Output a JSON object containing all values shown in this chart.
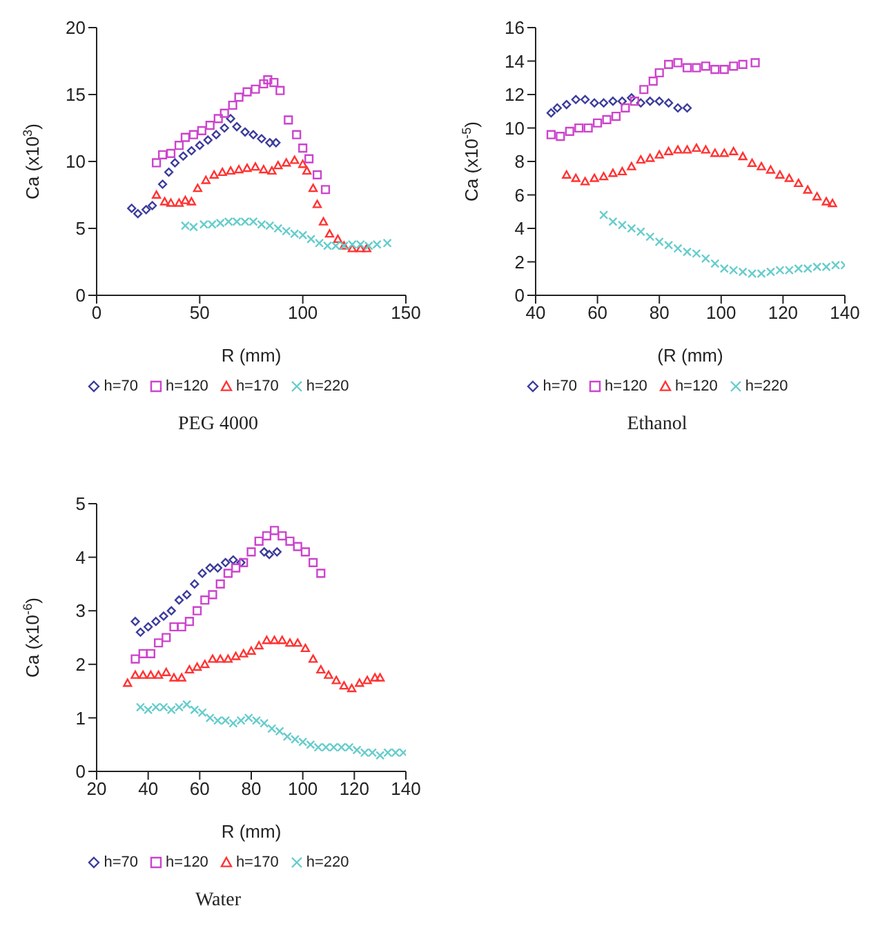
{
  "chart_data": [
    {
      "type": "scatter",
      "title": "PEG 4000",
      "xlabel": "R (mm)",
      "ylabel": "Ca (x10$^{3}$)",
      "xlim": [
        0,
        150
      ],
      "xticks": [
        0,
        50,
        100,
        150
      ],
      "ylim": [
        0,
        20
      ],
      "yticks": [
        0,
        5,
        10,
        15,
        20
      ],
      "grid": false,
      "legend": "bottom",
      "series": [
        {
          "name": "h=70",
          "color": "#3c3c9c",
          "marker": "diamond",
          "x": [
            17,
            20,
            24,
            27,
            32,
            35,
            38,
            42,
            46,
            50,
            54,
            58,
            62,
            65,
            68,
            72,
            76,
            80,
            84,
            87
          ],
          "values": [
            6.5,
            6.1,
            6.4,
            6.7,
            8.3,
            9.2,
            9.9,
            10.4,
            10.8,
            11.2,
            11.6,
            12.0,
            12.5,
            13.2,
            12.6,
            12.2,
            12.0,
            11.7,
            11.4,
            11.4
          ]
        },
        {
          "name": "h=120",
          "color": "#cc44cc",
          "marker": "square",
          "x": [
            29,
            32,
            36,
            40,
            43,
            47,
            51,
            55,
            59,
            62,
            66,
            69,
            73,
            77,
            81,
            83,
            86,
            89,
            93,
            97,
            100,
            103,
            107,
            111
          ],
          "values": [
            9.9,
            10.5,
            10.6,
            11.2,
            11.8,
            12.0,
            12.3,
            12.7,
            13.2,
            13.6,
            14.2,
            14.8,
            15.2,
            15.4,
            15.8,
            16.1,
            15.9,
            15.3,
            13.1,
            12.0,
            11.0,
            10.2,
            9.0,
            7.9
          ]
        },
        {
          "name": "h=170",
          "color": "#ff3333",
          "marker": "triangle",
          "x": [
            29,
            33,
            36,
            40,
            43,
            46,
            49,
            53,
            57,
            61,
            65,
            69,
            73,
            77,
            81,
            85,
            88,
            92,
            96,
            100,
            102,
            105,
            107,
            110,
            113,
            117,
            120,
            124,
            128,
            131
          ],
          "values": [
            7.5,
            7.0,
            6.9,
            6.9,
            7.1,
            7.0,
            8.0,
            8.6,
            9.0,
            9.2,
            9.3,
            9.4,
            9.5,
            9.6,
            9.4,
            9.3,
            9.7,
            9.9,
            10.1,
            9.8,
            9.3,
            8.0,
            6.8,
            5.5,
            4.6,
            4.2,
            3.7,
            3.5,
            3.5,
            3.5
          ]
        },
        {
          "name": "h=220",
          "color": "#66cccc",
          "marker": "cross",
          "x": [
            43,
            47,
            52,
            56,
            60,
            64,
            68,
            72,
            76,
            80,
            84,
            88,
            92,
            96,
            100,
            104,
            108,
            112,
            116,
            120,
            124,
            128,
            132,
            136,
            141
          ],
          "values": [
            5.2,
            5.1,
            5.3,
            5.3,
            5.4,
            5.5,
            5.5,
            5.5,
            5.5,
            5.3,
            5.2,
            5.0,
            4.8,
            4.6,
            4.5,
            4.2,
            3.9,
            3.7,
            3.7,
            3.7,
            3.8,
            3.8,
            3.7,
            3.8,
            3.9
          ]
        }
      ]
    },
    {
      "type": "scatter",
      "title": "Ethanol",
      "xlabel": "(R (mm)",
      "ylabel": "Ca (x10$^{-5}$)",
      "xlim": [
        40,
        140
      ],
      "xticks": [
        40,
        60,
        80,
        100,
        120,
        140
      ],
      "ylim": [
        0,
        16
      ],
      "yticks": [
        0,
        2,
        4,
        6,
        8,
        10,
        12,
        14,
        16
      ],
      "grid": false,
      "legend": "bottom",
      "series": [
        {
          "name": "h=70",
          "color": "#3c3c9c",
          "marker": "diamond",
          "x": [
            45,
            47,
            50,
            53,
            56,
            59,
            62,
            65,
            68,
            71,
            74,
            77,
            80,
            83,
            86,
            89
          ],
          "values": [
            10.9,
            11.2,
            11.4,
            11.7,
            11.7,
            11.5,
            11.5,
            11.6,
            11.6,
            11.8,
            11.5,
            11.6,
            11.6,
            11.5,
            11.2,
            11.2
          ]
        },
        {
          "name": "h=120",
          "color": "#cc44cc",
          "marker": "square",
          "x": [
            45,
            48,
            51,
            54,
            57,
            60,
            63,
            66,
            69,
            72,
            75,
            78,
            80,
            83,
            86,
            89,
            92,
            95,
            98,
            101,
            104,
            107,
            111
          ],
          "values": [
            9.6,
            9.5,
            9.8,
            10.0,
            10.0,
            10.3,
            10.5,
            10.7,
            11.2,
            11.6,
            12.3,
            12.8,
            13.3,
            13.8,
            13.9,
            13.6,
            13.6,
            13.7,
            13.5,
            13.5,
            13.7,
            13.8,
            13.9
          ]
        },
        {
          "name": "h=120",
          "color": "#ff3333",
          "marker": "triangle",
          "x": [
            50,
            53,
            56,
            59,
            62,
            65,
            68,
            71,
            74,
            77,
            80,
            83,
            86,
            89,
            92,
            95,
            98,
            101,
            104,
            107,
            110,
            113,
            116,
            119,
            122,
            125,
            128,
            131,
            134,
            136
          ],
          "values": [
            7.2,
            7.0,
            6.8,
            7.0,
            7.1,
            7.3,
            7.4,
            7.7,
            8.1,
            8.2,
            8.4,
            8.6,
            8.7,
            8.7,
            8.8,
            8.7,
            8.5,
            8.5,
            8.6,
            8.3,
            7.9,
            7.7,
            7.5,
            7.2,
            7.0,
            6.7,
            6.3,
            5.9,
            5.6,
            5.5
          ]
        },
        {
          "name": "h=220",
          "color": "#66cccc",
          "marker": "cross",
          "x": [
            62,
            65,
            68,
            71,
            74,
            77,
            80,
            83,
            86,
            89,
            92,
            95,
            98,
            101,
            104,
            107,
            110,
            113,
            116,
            119,
            122,
            125,
            128,
            131,
            134,
            137,
            140
          ],
          "values": [
            4.8,
            4.4,
            4.2,
            4.0,
            3.8,
            3.5,
            3.2,
            3.0,
            2.8,
            2.6,
            2.5,
            2.2,
            1.9,
            1.6,
            1.5,
            1.4,
            1.3,
            1.3,
            1.4,
            1.5,
            1.5,
            1.6,
            1.6,
            1.7,
            1.7,
            1.8,
            1.8
          ]
        }
      ]
    },
    {
      "type": "scatter",
      "title": "Water",
      "xlabel": "R (mm)",
      "ylabel": "Ca (x10$^{-6}$)",
      "xlim": [
        20,
        140
      ],
      "xticks": [
        20,
        40,
        60,
        80,
        100,
        120,
        140
      ],
      "ylim": [
        0,
        5
      ],
      "yticks": [
        0,
        1,
        2,
        3,
        4,
        5
      ],
      "grid": false,
      "legend": "bottom",
      "series": [
        {
          "name": "h=70",
          "color": "#3c3c9c",
          "marker": "diamond",
          "x": [
            35,
            37,
            40,
            43,
            46,
            49,
            52,
            55,
            58,
            61,
            64,
            67,
            70,
            73,
            76,
            85,
            87,
            90
          ],
          "values": [
            2.8,
            2.6,
            2.7,
            2.8,
            2.9,
            3.0,
            3.2,
            3.3,
            3.5,
            3.7,
            3.8,
            3.8,
            3.9,
            3.95,
            3.9,
            4.1,
            4.05,
            4.1
          ]
        },
        {
          "name": "h=120",
          "color": "#cc44cc",
          "marker": "square",
          "x": [
            35,
            38,
            41,
            44,
            47,
            50,
            53,
            56,
            59,
            62,
            65,
            68,
            71,
            74,
            77,
            80,
            83,
            86,
            89,
            92,
            95,
            98,
            101,
            104,
            107
          ],
          "values": [
            2.1,
            2.2,
            2.2,
            2.4,
            2.5,
            2.7,
            2.7,
            2.8,
            3.0,
            3.2,
            3.3,
            3.5,
            3.7,
            3.8,
            3.9,
            4.1,
            4.3,
            4.4,
            4.5,
            4.4,
            4.3,
            4.2,
            4.1,
            3.9,
            3.7
          ]
        },
        {
          "name": "h=170",
          "color": "#ff3333",
          "marker": "triangle",
          "x": [
            32,
            35,
            38,
            41,
            44,
            47,
            50,
            53,
            56,
            59,
            62,
            65,
            68,
            71,
            74,
            77,
            80,
            83,
            86,
            89,
            92,
            95,
            98,
            101,
            104,
            107,
            110,
            113,
            116,
            119,
            122,
            125,
            128,
            130
          ],
          "values": [
            1.65,
            1.8,
            1.8,
            1.8,
            1.8,
            1.85,
            1.75,
            1.75,
            1.9,
            1.95,
            2.0,
            2.1,
            2.1,
            2.1,
            2.15,
            2.2,
            2.25,
            2.35,
            2.45,
            2.45,
            2.45,
            2.4,
            2.4,
            2.3,
            2.1,
            1.9,
            1.8,
            1.7,
            1.6,
            1.55,
            1.65,
            1.7,
            1.75,
            1.75
          ]
        },
        {
          "name": "h=220",
          "color": "#66cccc",
          "marker": "cross",
          "x": [
            37,
            40,
            43,
            46,
            49,
            52,
            55,
            58,
            61,
            64,
            67,
            70,
            73,
            76,
            79,
            82,
            85,
            88,
            91,
            94,
            97,
            100,
            103,
            106,
            109,
            112,
            115,
            118,
            121,
            124,
            127,
            130,
            133,
            136,
            139
          ],
          "values": [
            1.2,
            1.15,
            1.2,
            1.2,
            1.15,
            1.2,
            1.25,
            1.15,
            1.1,
            1.0,
            0.95,
            0.95,
            0.9,
            0.95,
            1.0,
            0.95,
            0.9,
            0.8,
            0.75,
            0.65,
            0.6,
            0.55,
            0.5,
            0.45,
            0.45,
            0.45,
            0.45,
            0.45,
            0.4,
            0.35,
            0.35,
            0.3,
            0.35,
            0.35,
            0.35
          ]
        }
      ]
    }
  ]
}
